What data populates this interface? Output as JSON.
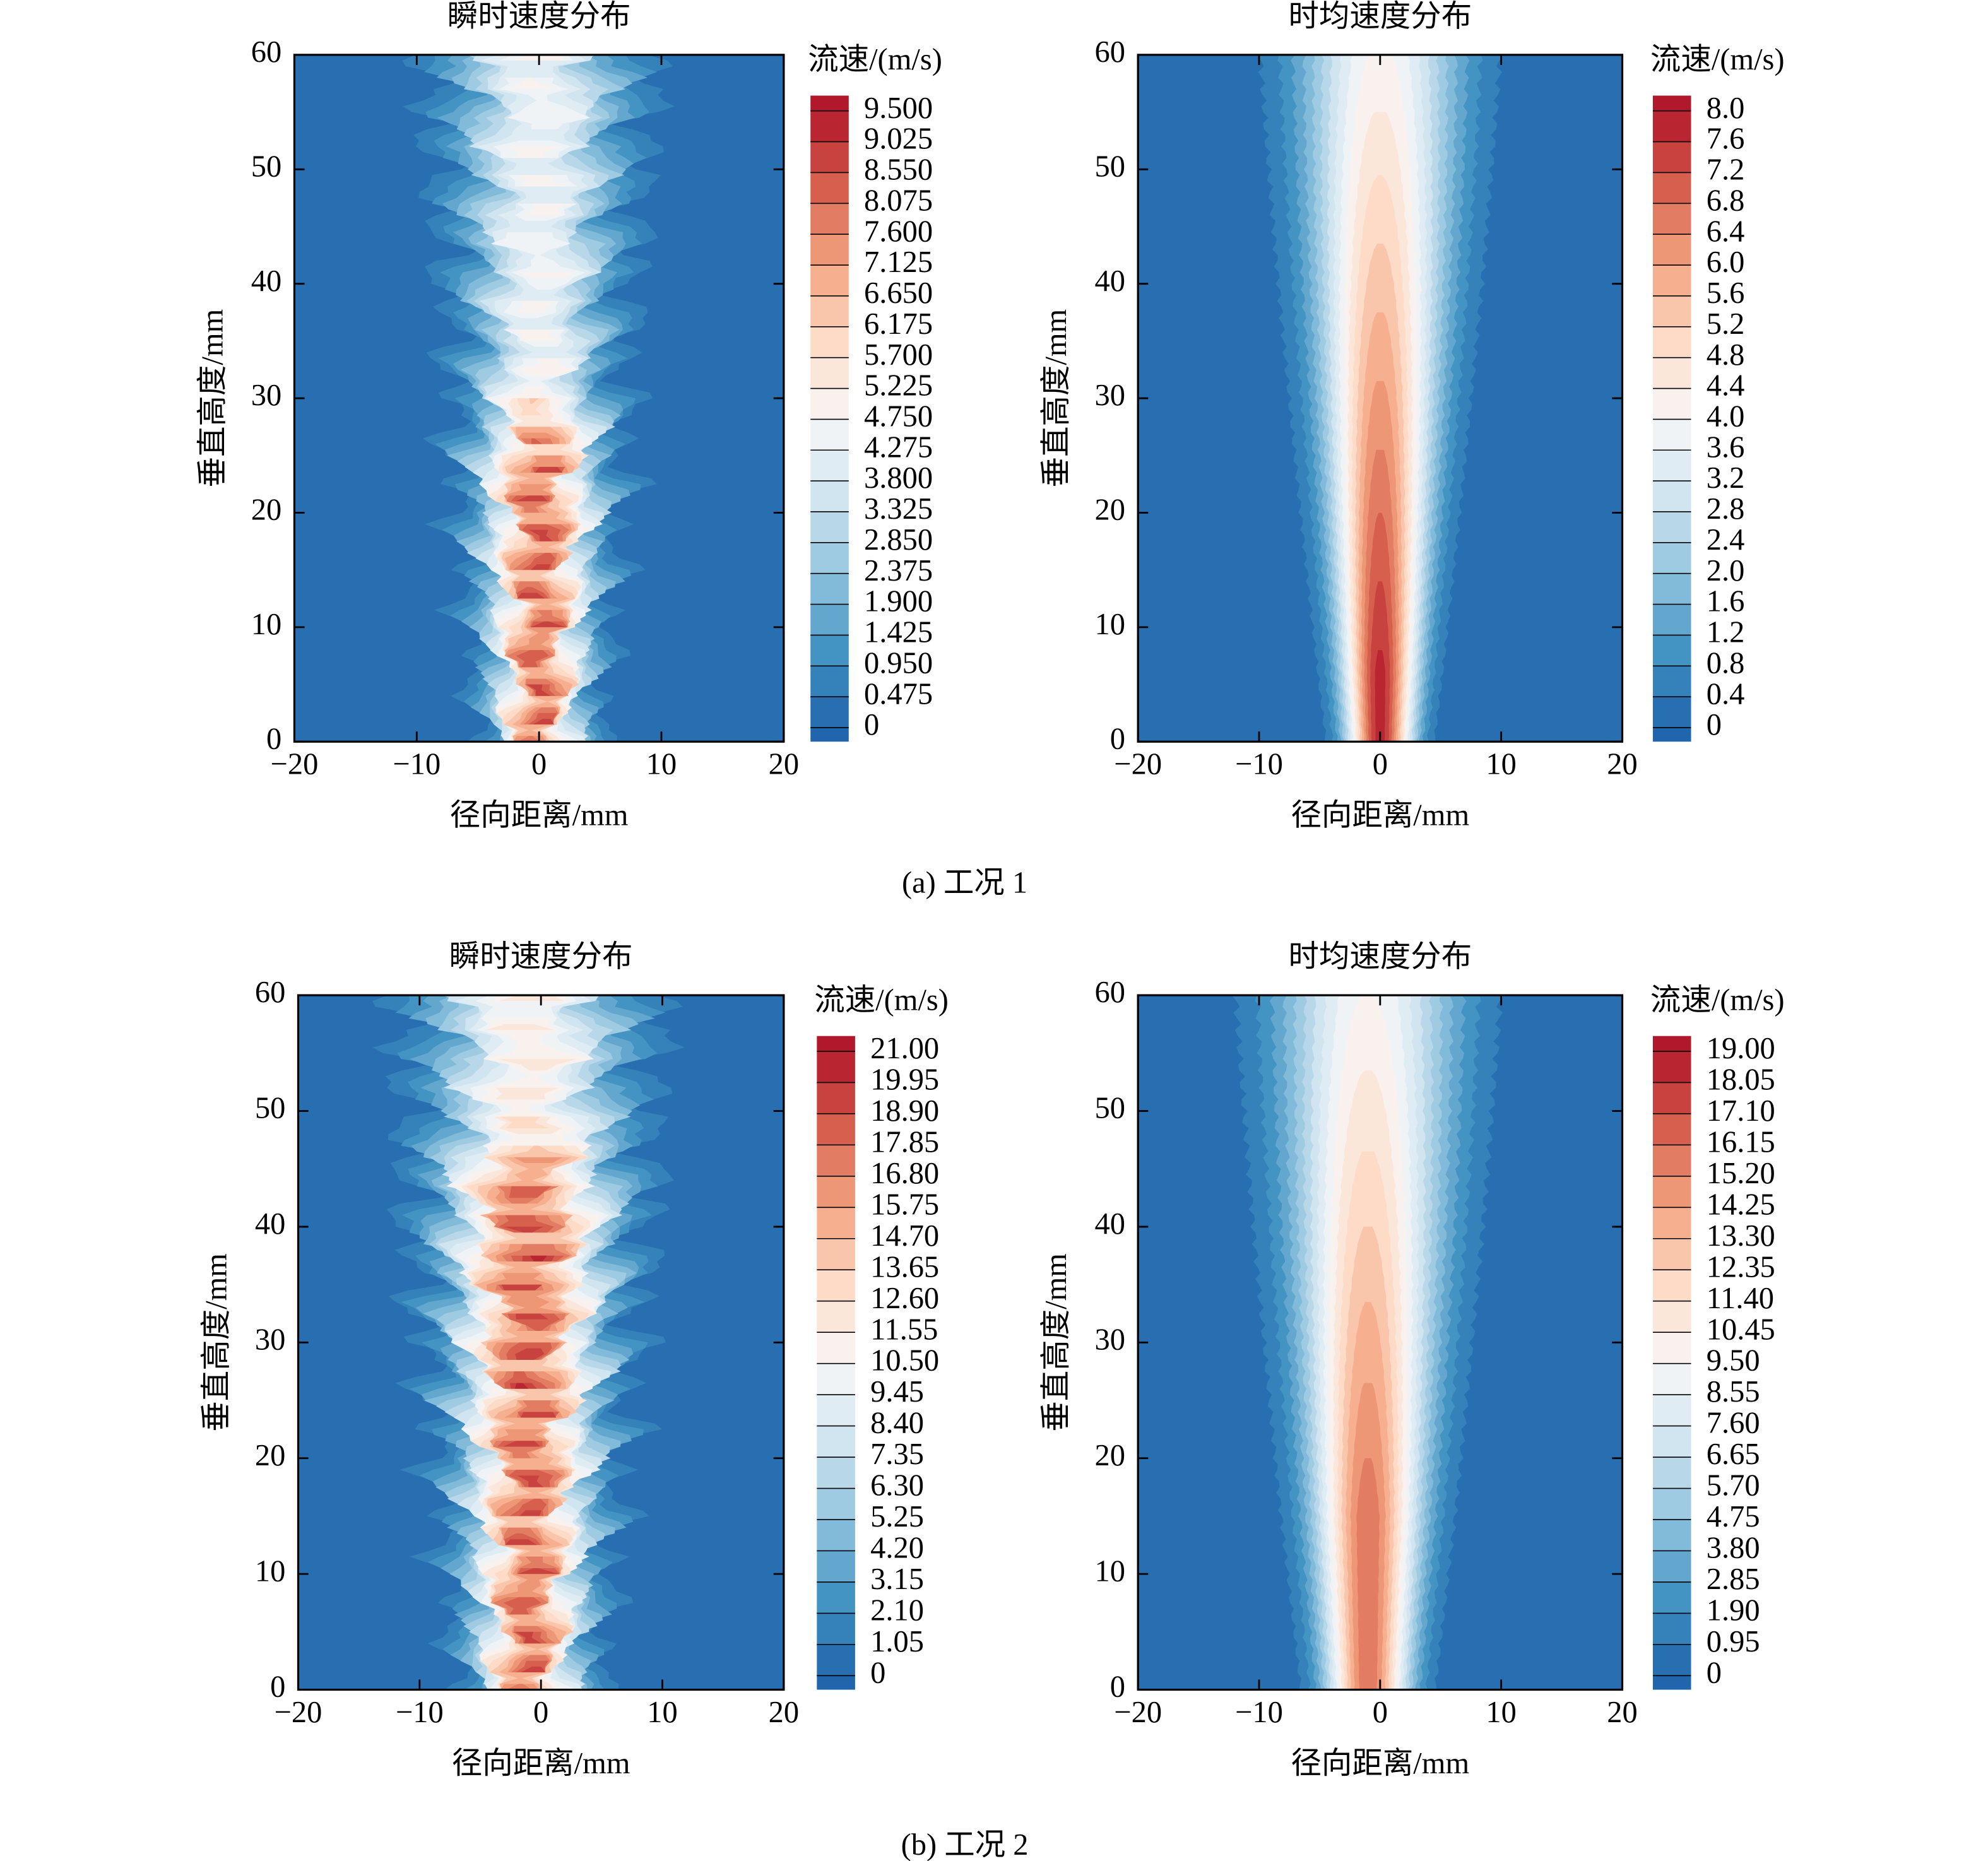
{
  "chart_data": [
    {
      "type": "contour",
      "title": "瞬时速度分布",
      "x_label": "径向距离/mm",
      "y_label": "垂直高度/mm",
      "xlim": [
        -20,
        20
      ],
      "xticks": [
        {
          "value": -20,
          "label": "−20"
        },
        {
          "value": -10,
          "label": "−10"
        },
        0,
        10,
        20
      ],
      "ylim": [
        0,
        60
      ],
      "yticks": [
        0,
        10,
        20,
        30,
        40,
        50,
        60
      ],
      "colorbar_label": "流速/(m/s)",
      "levels": [
        0,
        0.475,
        {
          "value": 0.95,
          "label": "0.950"
        },
        1.425,
        {
          "value": 1.9,
          "label": "1.900"
        },
        2.375,
        {
          "value": 2.85,
          "label": "2.850"
        },
        3.325,
        {
          "value": 3.8,
          "label": "3.800"
        },
        4.275,
        {
          "value": 4.75,
          "label": "4.750"
        },
        5.225,
        {
          "value": 5.7,
          "label": "5.700"
        },
        6.175,
        {
          "value": 6.65,
          "label": "6.650"
        },
        7.125,
        {
          "value": 7.6,
          "label": "7.600"
        },
        8.075,
        {
          "value": 8.55,
          "label": "8.550"
        },
        9.025,
        {
          "value": 9.5,
          "label": "9.500"
        }
      ],
      "colormap": [
        "#2166ac",
        "#4393c3",
        "#92c5de",
        "#d1e5f0",
        "#f7f7f7",
        "#fddbc7",
        "#f4a582",
        "#d6604d",
        "#b2182b"
      ]
    },
    {
      "type": "contour",
      "title": "时均速度分布",
      "x_label": "径向距离/mm",
      "y_label": "垂直高度/mm",
      "xlim": [
        -20,
        20
      ],
      "xticks": [
        {
          "value": -20,
          "label": "−20"
        },
        {
          "value": -10,
          "label": "−10"
        },
        0,
        10,
        20
      ],
      "ylim": [
        0,
        60
      ],
      "yticks": [
        0,
        10,
        20,
        30,
        40,
        50,
        60
      ],
      "colorbar_label": "流速/(m/s)",
      "levels": [
        0,
        0.4,
        0.8,
        1.2,
        1.6,
        {
          "value": 2,
          "label": "2.0"
        },
        2.4,
        2.8,
        3.2,
        3.6,
        {
          "value": 4,
          "label": "4.0"
        },
        4.4,
        4.8,
        5.2,
        5.6,
        {
          "value": 6,
          "label": "6.0"
        },
        6.4,
        6.8,
        7.2,
        7.6,
        {
          "value": 8,
          "label": "8.0"
        }
      ],
      "colormap": [
        "#2166ac",
        "#4393c3",
        "#92c5de",
        "#d1e5f0",
        "#f7f7f7",
        "#fddbc7",
        "#f4a582",
        "#d6604d",
        "#b2182b"
      ]
    },
    {
      "type": "contour",
      "title": "瞬时速度分布",
      "x_label": "径向距离/mm",
      "y_label": "垂直高度/mm",
      "xlim": [
        -20,
        20
      ],
      "xticks": [
        {
          "value": -20,
          "label": "−20"
        },
        {
          "value": -10,
          "label": "−10"
        },
        0,
        10,
        20
      ],
      "ylim": [
        0,
        60
      ],
      "yticks": [
        0,
        10,
        20,
        30,
        40,
        50,
        60
      ],
      "colorbar_label": "流速/(m/s)",
      "levels": [
        0,
        1.05,
        {
          "value": 2.1,
          "label": "2.10"
        },
        3.15,
        {
          "value": 4.2,
          "label": "4.20"
        },
        5.25,
        {
          "value": 6.3,
          "label": "6.30"
        },
        7.35,
        {
          "value": 8.4,
          "label": "8.40"
        },
        9.45,
        {
          "value": 10.5,
          "label": "10.50"
        },
        11.55,
        {
          "value": 12.6,
          "label": "12.60"
        },
        13.65,
        {
          "value": 14.7,
          "label": "14.70"
        },
        15.75,
        {
          "value": 16.8,
          "label": "16.80"
        },
        17.85,
        {
          "value": 18.9,
          "label": "18.90"
        },
        19.95,
        {
          "value": 21,
          "label": "21.00"
        }
      ],
      "colormap": [
        "#2166ac",
        "#4393c3",
        "#92c5de",
        "#d1e5f0",
        "#f7f7f7",
        "#fddbc7",
        "#f4a582",
        "#d6604d",
        "#b2182b"
      ]
    },
    {
      "type": "contour",
      "title": "时均速度分布",
      "x_label": "径向距离/mm",
      "y_label": "垂直高度/mm",
      "xlim": [
        -20,
        20
      ],
      "xticks": [
        {
          "value": -20,
          "label": "−20"
        },
        {
          "value": -10,
          "label": "−10"
        },
        0,
        10,
        20
      ],
      "ylim": [
        0,
        60
      ],
      "yticks": [
        0,
        10,
        20,
        30,
        40,
        50,
        60
      ],
      "colorbar_label": "流速/(m/s)",
      "levels": [
        0,
        0.95,
        {
          "value": 1.9,
          "label": "1.90"
        },
        2.85,
        {
          "value": 3.8,
          "label": "3.80"
        },
        4.75,
        {
          "value": 5.7,
          "label": "5.70"
        },
        6.65,
        {
          "value": 7.6,
          "label": "7.60"
        },
        8.55,
        {
          "value": 9.5,
          "label": "9.50"
        },
        10.45,
        {
          "value": 11.4,
          "label": "11.40"
        },
        12.35,
        {
          "value": 13.3,
          "label": "13.30"
        },
        14.25,
        {
          "value": 15.2,
          "label": "15.20"
        },
        16.15,
        {
          "value": 17.1,
          "label": "17.10"
        },
        18.05,
        {
          "value": 19,
          "label": "19.00"
        }
      ],
      "colormap": [
        "#2166ac",
        "#4393c3",
        "#92c5de",
        "#d1e5f0",
        "#f7f7f7",
        "#fddbc7",
        "#f4a582",
        "#d6604d",
        "#b2182b"
      ]
    }
  ],
  "captions": [
    "(a) 工况 1",
    "(b) 工况 2"
  ]
}
